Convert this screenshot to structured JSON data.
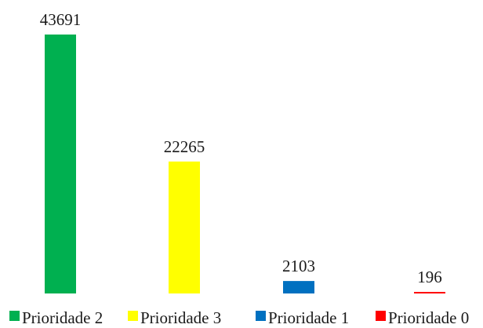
{
  "chart_data": {
    "type": "bar",
    "categories": [
      "Prioridade 2",
      "Prioridade 3",
      "Prioridade 1",
      "Prioridade 0"
    ],
    "values": [
      43691,
      22265,
      2103,
      196
    ],
    "data_labels": [
      "43691",
      "22265",
      "2103",
      "196"
    ],
    "colors": [
      "#00b050",
      "#ffff00",
      "#0070c0",
      "#ff0000"
    ],
    "ylim": [
      0,
      43691
    ],
    "grid": false,
    "legend": "bottom"
  }
}
